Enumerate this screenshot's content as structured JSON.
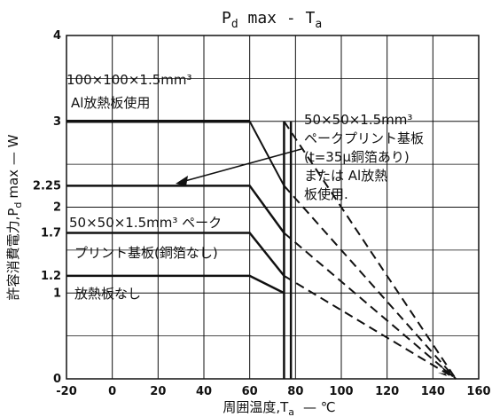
{
  "chart_data": {
    "type": "line",
    "title": "P_d max - T_a",
    "title_main": "P",
    "title_sub1": "d",
    "title_mid": " max - T",
    "title_sub2": "a",
    "xlabel": "周囲温度,T",
    "xlabel_sub": "a",
    "xlabel_unit": "— ℃",
    "ylabel": "許容消費電力,P",
    "ylabel_sub": "d",
    "ylabel_unit": "max — W",
    "xlim": [
      -20,
      160
    ],
    "ylim": [
      0,
      4
    ],
    "x_ticks": [
      -20,
      0,
      20,
      40,
      60,
      80,
      100,
      120,
      140,
      160
    ],
    "x_tick_labels": [
      "-20",
      "0",
      "20",
      "40",
      "60",
      "80",
      "100",
      "120",
      "140",
      "160"
    ],
    "y_ticks": [
      0,
      1,
      1.2,
      1.7,
      2,
      2.25,
      3,
      4
    ],
    "y_tick_labels": [
      "0",
      "1",
      "1.2",
      "1.7",
      "2",
      "2.25",
      "3",
      "4"
    ],
    "grid": true,
    "series": [
      {
        "style": "solid-thick",
        "x": [
          -20,
          60
        ],
        "y": [
          3,
          3
        ],
        "continuation": {
          "style": "solid",
          "x": [
            60,
            75
          ],
          "y": [
            3,
            2.25
          ]
        },
        "derating_dashed": {
          "x": [
            75,
            150
          ],
          "y": [
            2.25,
            0
          ]
        }
      },
      {
        "style": "solid",
        "x": [
          -20,
          60,
          75
        ],
        "y": [
          2.25,
          2.25,
          1.7
        ]
      },
      {
        "style": "solid",
        "x": [
          -20,
          60,
          75
        ],
        "y": [
          1.7,
          1.7,
          1.2
        ],
        "derating_dashed": {
          "x": [
            75,
            150
          ],
          "y": [
            1.7,
            0
          ]
        }
      },
      {
        "style": "solid",
        "x": [
          -20,
          60,
          75
        ],
        "y": [
          1.2,
          1.2,
          1.0
        ],
        "derating_dashed": {
          "x": [
            75,
            150
          ],
          "y": [
            1.2,
            0
          ]
        }
      }
    ],
    "extra_dashed": [
      {
        "x": [
          75,
          150
        ],
        "y": [
          3,
          0
        ]
      }
    ],
    "vertical_limits": [
      75,
      78
    ],
    "annotations": [
      {
        "lines": [
          "100×100×1.5mm³",
          "Al放熱板使用"
        ]
      },
      {
        "lines": [
          "50×50×1.5mm³",
          "ペークプリント基板",
          "(t=35μ銅箔あり)",
          "または Al放熱",
          "板使用."
        ]
      },
      {
        "lines": [
          "50×50×1.5mm³ ペーク",
          "プリント基板(銅箔なし)"
        ]
      },
      {
        "lines": [
          "放熱板なし"
        ]
      }
    ]
  }
}
